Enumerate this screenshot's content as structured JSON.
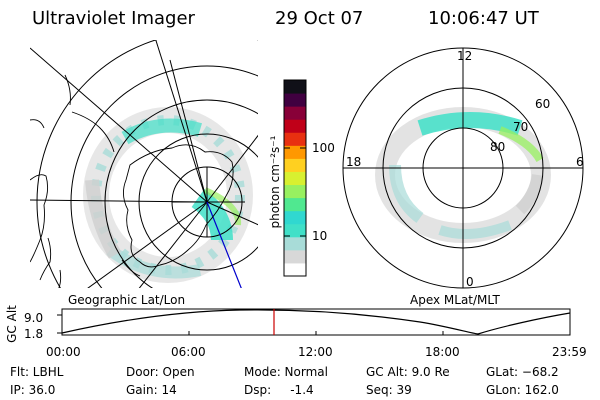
{
  "header": {
    "title": "Ultraviolet Imager",
    "date": "29 Oct 07",
    "time": "10:06:47 UT"
  },
  "geo_panel": {
    "label": "Geographic Lat/Lon"
  },
  "apex_panel": {
    "label": "Apex MLat/MLT",
    "mlt_labels": {
      "top": "12",
      "left": "18",
      "right": "6",
      "bottom": "0"
    },
    "lat_labels": [
      "60",
      "70",
      "80"
    ]
  },
  "colorbar": {
    "unit_label": "photon cm⁻²s⁻¹",
    "ticks": [
      "100",
      "10"
    ],
    "colors": [
      "#ffffff",
      "#d8d8d8",
      "#a8dcd8",
      "#40e0c8",
      "#30d8d0",
      "#50e890",
      "#98f060",
      "#d8f030",
      "#ffd020",
      "#ff9800",
      "#e83010",
      "#c00018",
      "#880038",
      "#400040",
      "#101018"
    ]
  },
  "altitude_plot": {
    "y_label": "GC Alt",
    "y_ticks": [
      "9.0",
      "1.8"
    ],
    "x_ticks": [
      "00:00",
      "06:00",
      "12:00",
      "18:00",
      "23:59"
    ],
    "cursor_color": "#cc0000"
  },
  "info": {
    "filter": "Flt: LBHL",
    "ip": "IP: 36.0",
    "door": "Door: Open",
    "gain": "Gain: 14",
    "mode": "Mode: Normal",
    "dsp": "Dsp:     -1.4",
    "gc_alt": "GC Alt: 9.0 Re",
    "seq": "Seq: 39",
    "glat": "GLat: −68.2",
    "glon": "GLon: 162.0"
  }
}
